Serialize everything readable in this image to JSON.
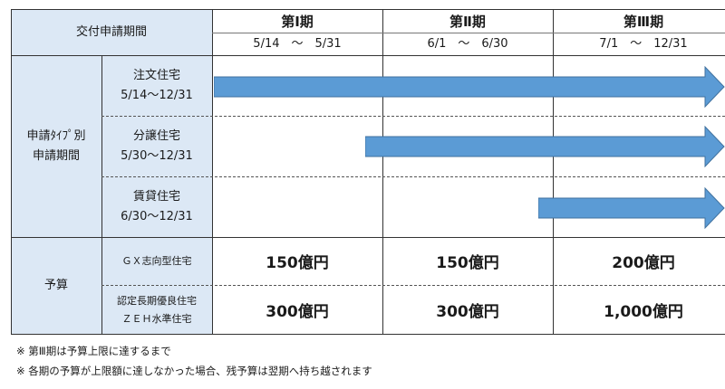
{
  "header": {
    "label": "交付申請期間",
    "periods": [
      {
        "name": "第Ⅰ期",
        "dates": "5/14　～　5/31"
      },
      {
        "name": "第Ⅱ期",
        "dates": "6/1　～　6/30"
      },
      {
        "name": "第Ⅲ期",
        "dates": "7/1　～　12/31"
      }
    ]
  },
  "type_section": {
    "label_line1": "申請ﾀｲﾌﾟ別",
    "label_line2": "申請期間",
    "rows": [
      {
        "name": "注文住宅",
        "range": "5/14～12/31"
      },
      {
        "name": "分譲住宅",
        "range": "5/30～12/31"
      },
      {
        "name": "賃貸住宅",
        "range": "6/30～12/31"
      }
    ]
  },
  "budget": {
    "label": "予算",
    "rows": [
      {
        "name": "ＧＸ志向型住宅",
        "values": [
          "150億円",
          "150億円",
          "200億円"
        ]
      },
      {
        "name_line1": "認定長期優良住宅",
        "name_line2": "ＺＥＨ水準住宅",
        "values": [
          "300億円",
          "300億円",
          "1,000億円"
        ]
      }
    ]
  },
  "notes": [
    "※ 第Ⅲ期は予算上限に達するまで",
    "※ 各期の予算が上限額に達しなかった場合、残予算は翌期へ持ち越されます"
  ],
  "colors": {
    "header_fill": "#dce8f5",
    "arrow_fill": "#5b9bd5",
    "arrow_stroke": "#41729f"
  }
}
